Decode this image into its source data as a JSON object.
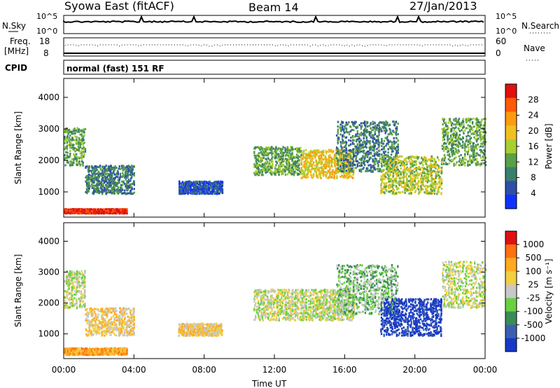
{
  "header": {
    "station": "Syowa East (fitACF)",
    "beam": "Beam 14",
    "date": "27/Jan/2013"
  },
  "status_panels": {
    "nsky_label": "N.Sky",
    "nsearch_label": "N.Search",
    "noise_ticks": [
      "10^5",
      "10^0"
    ],
    "noise_ticks_right": [
      "10^5",
      "10^0"
    ],
    "freq_label": "Freq.",
    "freq_unit": "[MHz]",
    "freq_ticks": [
      "18",
      "8"
    ],
    "nave_label": "Nave",
    "nave_ticks": [
      "60",
      "0"
    ],
    "cpid_label": "CPID",
    "cpid_text": "normal (fast) 151 RF"
  },
  "chart_data": [
    {
      "type": "heatmap",
      "panel": "power",
      "ylabel": "Slant Range [km]",
      "xlabel": "",
      "x_tick_labels": [
        "00:00",
        "04:00",
        "08:00",
        "12:00",
        "16:00",
        "20:00",
        "00:00"
      ],
      "xlim_hours": [
        0,
        24
      ],
      "ylim_km": [
        200,
        4600
      ],
      "y_ticks": [
        1000,
        2000,
        3000,
        4000
      ],
      "colorbar": {
        "label": "Power [dB]",
        "ticks": [
          "4",
          "8",
          "12",
          "16",
          "20",
          "24",
          "28"
        ],
        "colors": [
          "#1030ff",
          "#2f4ea8",
          "#3a7f6a",
          "#5aa048",
          "#a8cf30",
          "#f0c020",
          "#ff9a10",
          "#ff5a08",
          "#e01010"
        ]
      },
      "echo_regions": [
        {
          "t0": 0.0,
          "t1": 1.2,
          "r0": 1800,
          "r1": 3000,
          "level": 3
        },
        {
          "t0": 0.0,
          "t1": 3.6,
          "r0": 280,
          "r1": 420,
          "level": 8
        },
        {
          "t0": 1.2,
          "t1": 4.0,
          "r0": 900,
          "r1": 1800,
          "level": 2
        },
        {
          "t0": 6.5,
          "t1": 9.0,
          "r0": 900,
          "r1": 1300,
          "level": 1
        },
        {
          "t0": 10.8,
          "t1": 13.5,
          "r0": 1500,
          "r1": 2400,
          "level": 3
        },
        {
          "t0": 13.5,
          "t1": 16.5,
          "r0": 1400,
          "r1": 2300,
          "level": 5
        },
        {
          "t0": 15.5,
          "t1": 19.0,
          "r0": 1600,
          "r1": 3200,
          "level": 2
        },
        {
          "t0": 18.0,
          "t1": 21.5,
          "r0": 900,
          "r1": 2100,
          "level": 4
        },
        {
          "t0": 21.5,
          "t1": 24.0,
          "r0": 1800,
          "r1": 3300,
          "level": 3
        }
      ]
    },
    {
      "type": "heatmap",
      "panel": "velocity",
      "ylabel": "Slant Range [km]",
      "xlabel": "Time UT",
      "x_tick_labels": [
        "00:00",
        "04:00",
        "08:00",
        "12:00",
        "16:00",
        "20:00",
        "00:00"
      ],
      "xlim_hours": [
        0,
        24
      ],
      "ylim_km": [
        200,
        4600
      ],
      "y_ticks": [
        1000,
        2000,
        3000,
        4000
      ],
      "colorbar": {
        "label": "Velocity [m s⁻¹]",
        "ticks": [
          "1000",
          "500",
          "100",
          "25",
          "-25",
          "-100",
          "-500",
          "-1000"
        ],
        "colors": [
          "#1838c8",
          "#3a5fb0",
          "#3a8a5a",
          "#6ad040",
          "#c8c8c8",
          "#f0d040",
          "#ffaa20",
          "#ff7010",
          "#e01010"
        ]
      },
      "echo_regions": [
        {
          "t0": 0.0,
          "t1": 1.2,
          "r0": 1800,
          "r1": 3000,
          "level": 4
        },
        {
          "t0": 0.0,
          "t1": 3.6,
          "r0": 280,
          "r1": 500,
          "level": 6
        },
        {
          "t0": 1.2,
          "t1": 4.0,
          "r0": 900,
          "r1": 1800,
          "level": 5
        },
        {
          "t0": 6.5,
          "t1": 9.0,
          "r0": 900,
          "r1": 1300,
          "level": 5
        },
        {
          "t0": 10.8,
          "t1": 16.5,
          "r0": 1400,
          "r1": 2400,
          "level": 4
        },
        {
          "t0": 15.5,
          "t1": 19.0,
          "r0": 1600,
          "r1": 3200,
          "level": 3
        },
        {
          "t0": 18.0,
          "t1": 21.5,
          "r0": 900,
          "r1": 2100,
          "level": 0
        },
        {
          "t0": 21.5,
          "t1": 24.0,
          "r0": 1800,
          "r1": 3300,
          "level": 4
        }
      ]
    }
  ]
}
